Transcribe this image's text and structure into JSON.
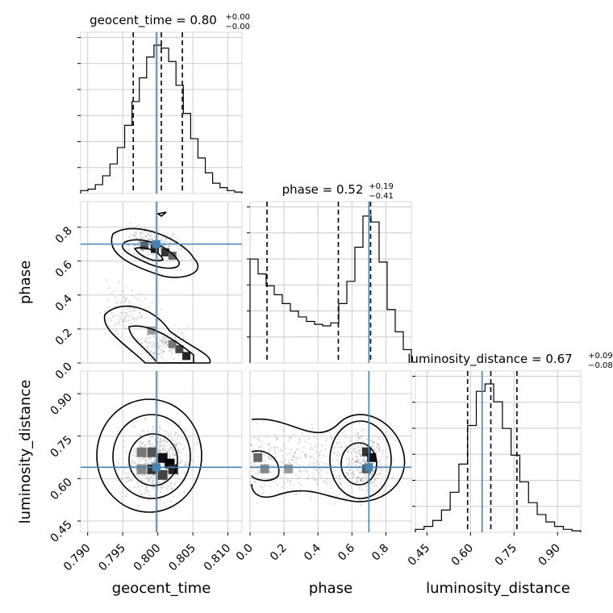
{
  "chart_data": {
    "type": "corner",
    "parameters": [
      {
        "name": "geocent_time",
        "xlabel": "geocent_time",
        "title_prefix": "geocent_time = ",
        "median": "0.80",
        "plus": "+0.00",
        "minus": "−0.00",
        "range": [
          0.789,
          0.812
        ],
        "ticks": [
          "0.790",
          "0.795",
          "0.800",
          "0.805",
          "0.810"
        ],
        "tick_values": [
          0.79,
          0.795,
          0.8,
          0.805,
          0.81
        ],
        "quantiles": [
          0.7965,
          0.8005,
          0.8035
        ],
        "truth": 0.7998,
        "hist": [
          0.02,
          0.03,
          0.06,
          0.12,
          0.2,
          0.31,
          0.46,
          0.62,
          0.78,
          0.92,
          1.0,
          0.98,
          0.89,
          0.73,
          0.54,
          0.37,
          0.24,
          0.14,
          0.07,
          0.04,
          0.02,
          0.01
        ]
      },
      {
        "name": "phase",
        "xlabel": "phase",
        "ylabel": "phase",
        "title_prefix": "phase = ",
        "median": "0.52",
        "plus": "+0.19",
        "minus": "−0.41",
        "range": [
          0.0,
          0.95
        ],
        "ticks": [
          "0.0",
          "0.2",
          "0.4",
          "0.6",
          "0.8"
        ],
        "tick_values": [
          0.0,
          0.2,
          0.4,
          0.6,
          0.8
        ],
        "y_ticks": [
          "0.0",
          "0.2",
          "0.4",
          "0.6",
          "0.8"
        ],
        "quantiles": [
          0.1,
          0.52,
          0.71
        ],
        "truth": 0.7,
        "hist": [
          0.7,
          0.6,
          0.52,
          0.46,
          0.4,
          0.35,
          0.31,
          0.28,
          0.26,
          0.25,
          0.27,
          0.4,
          0.55,
          0.78,
          0.99,
          0.95,
          0.68,
          0.36,
          0.21,
          0.09
        ]
      },
      {
        "name": "luminosity_distance",
        "xlabel": "luminosity_distance",
        "ylabel": "luminosity_distance",
        "title_prefix": "luminosity_distance = ",
        "median": "0.67",
        "plus": "+0.09",
        "minus": "−0.08",
        "range": [
          0.41,
          0.98
        ],
        "ticks": [
          "0.45",
          "0.60",
          "0.75",
          "0.90"
        ],
        "tick_values": [
          0.45,
          0.6,
          0.75,
          0.9
        ],
        "y_ticks": [
          "0.45",
          "0.60",
          "0.75",
          "0.90"
        ],
        "quantiles": [
          0.59,
          0.67,
          0.76
        ],
        "truth": 0.64,
        "hist": [
          0.02,
          0.04,
          0.08,
          0.15,
          0.27,
          0.46,
          0.72,
          0.95,
          1.0,
          0.88,
          0.7,
          0.52,
          0.34,
          0.2,
          0.12,
          0.07,
          0.04,
          0.02,
          0.01
        ]
      }
    ],
    "truth_color": "#4682b4",
    "contour_color": "#000000",
    "grid": true
  }
}
